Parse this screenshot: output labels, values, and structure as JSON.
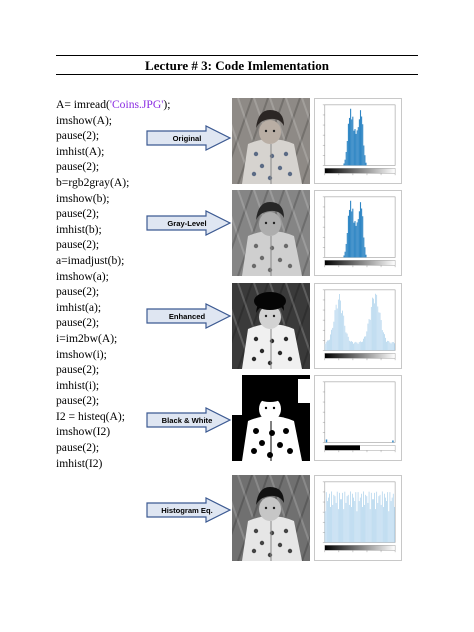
{
  "document": {
    "title": "Lecture # 3: Code Imlementation",
    "code_lines": [
      {
        "pre": "A= imread(",
        "str": "'Coins.JPG'",
        "post": ");"
      },
      {
        "pre": "imshow(A);"
      },
      {
        "pre": "pause(2);"
      },
      {
        "pre": "imhist(A);"
      },
      {
        "pre": "pause(2);"
      },
      {
        "pre": "b=rgb2gray(A);"
      },
      {
        "pre": "imshow(b);"
      },
      {
        "pre": "pause(2);"
      },
      {
        "pre": "imhist(b);"
      },
      {
        "pre": "pause(2);"
      },
      {
        "pre": "a=imadjust(b);"
      },
      {
        "pre": "imshow(a);"
      },
      {
        "pre": "pause(2);"
      },
      {
        "pre": "imhist(a);"
      },
      {
        "pre": "pause(2);"
      },
      {
        "pre": "i=im2bw(A);"
      },
      {
        "pre": "imshow(i);"
      },
      {
        "pre": "pause(2);"
      },
      {
        "pre": "imhist(i);"
      },
      {
        "pre": "pause(2);"
      },
      {
        "pre": "I2 = histeq(A);"
      },
      {
        "pre": "imshow(I2)"
      },
      {
        "pre": "pause(2);"
      },
      {
        "pre": "imhist(I2)"
      }
    ],
    "stages": [
      {
        "label": "Original"
      },
      {
        "label": "Gray-Level"
      },
      {
        "label": "Enhanced"
      },
      {
        "label": "Black & White"
      },
      {
        "label": "Histogram Eq."
      }
    ],
    "colors": {
      "arrow_fill": "#dfe6f2",
      "arrow_stroke": "#3c5a92",
      "hist_blue_dark": "#2f86c4",
      "hist_blue_light": "#9cc8e8",
      "code_string": "#8a2be2"
    },
    "icons": [
      "right-arrow-icon"
    ]
  }
}
